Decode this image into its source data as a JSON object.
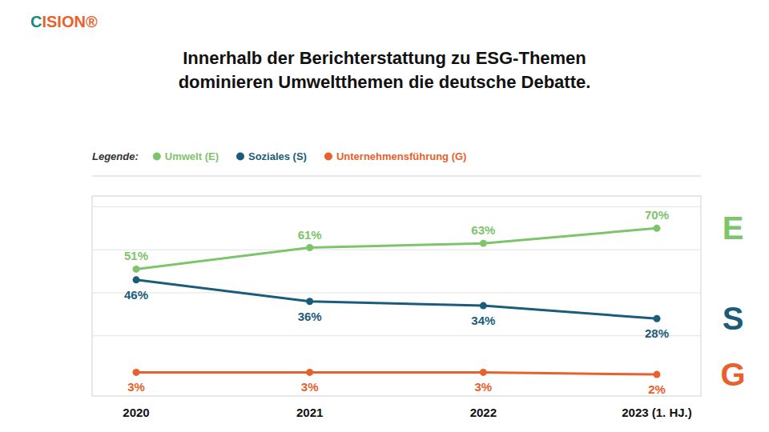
{
  "chart_data": {
    "type": "line",
    "title": "Innerhalb der Berichterstattung zu ESG-Themen",
    "subtitle": "dominieren Umweltthemen die deutsche Debatte.",
    "logo": [
      {
        "text": "C",
        "color": "#1a8a7a"
      },
      {
        "text": "ISION®",
        "color": "#e8612c"
      }
    ],
    "legend": "top-left",
    "legend_title": "Legende:",
    "categories": [
      "2020",
      "2021",
      "2022",
      "2023 (1. HJ.)"
    ],
    "series": [
      {
        "name": "Umwelt (E)",
        "letter": "E",
        "color": "#7dc46b",
        "values": [
          51,
          61,
          63,
          70
        ],
        "value_labels": [
          "51%",
          "61%",
          "63%",
          "70%"
        ]
      },
      {
        "name": "Soziales (S)",
        "letter": "S",
        "color": "#1b5c7a",
        "values": [
          46,
          36,
          34,
          28
        ],
        "value_labels": [
          "46%",
          "36%",
          "34%",
          "28%"
        ]
      },
      {
        "name": "Unternehmensführung (G)",
        "letter": "G",
        "color": "#e8612c",
        "values": [
          3,
          3,
          3,
          2
        ],
        "value_labels": [
          "3%",
          "3%",
          "3%",
          "2%"
        ]
      }
    ],
    "ylim": [
      -8,
      85
    ],
    "yticks": [
      20,
      40,
      60,
      80
    ],
    "grid": true,
    "tick_labels": "x",
    "data_labels": true,
    "marker": "circle",
    "line_style": "solid"
  }
}
